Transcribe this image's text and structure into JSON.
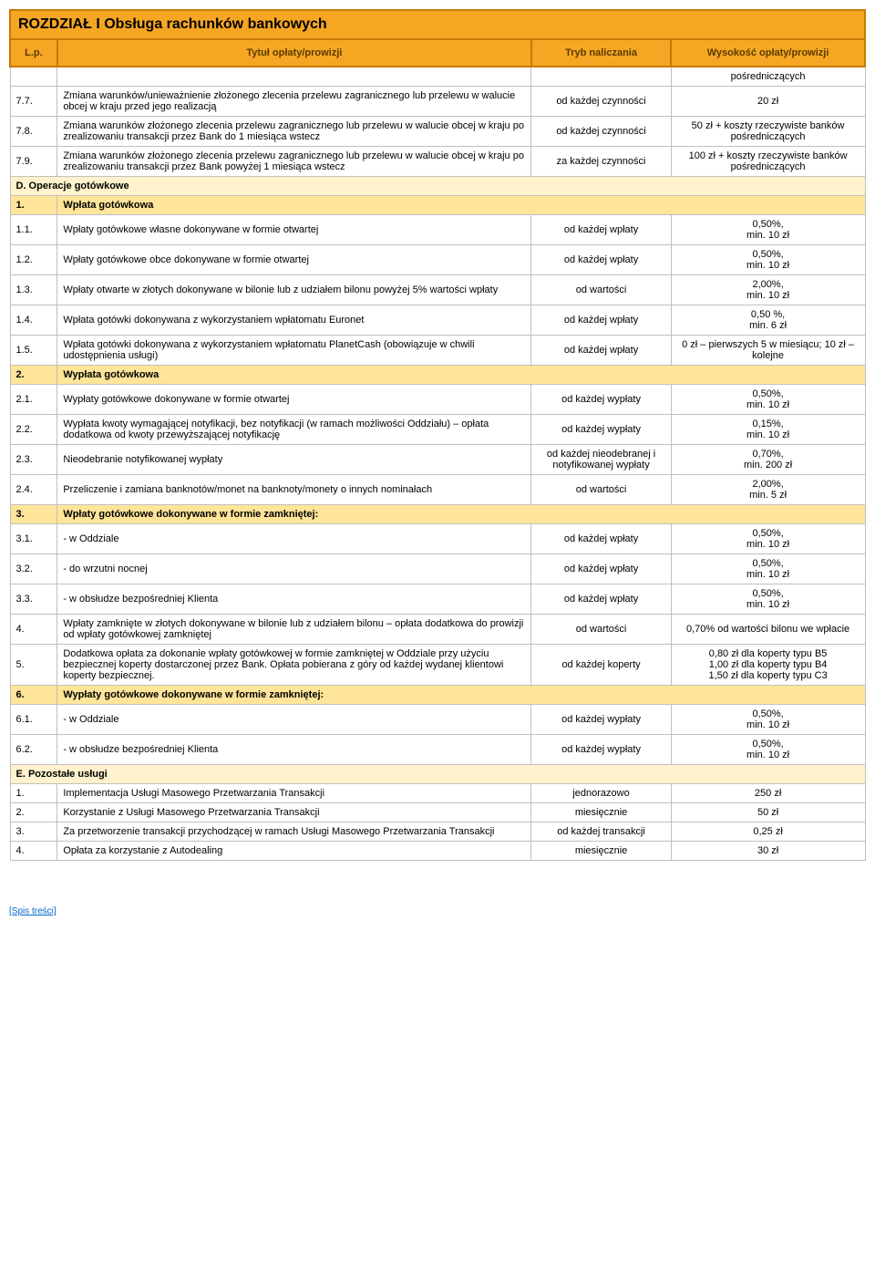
{
  "header": {
    "chapter": "ROZDZIAŁ I Obsługa rachunków bankowych",
    "col_lp": "L.p.",
    "col_title": "Tytuł opłaty/prowizji",
    "col_tryb": "Tryb naliczania",
    "col_wys": "Wysokość opłaty/prowizji"
  },
  "rows": [
    {
      "type": "data",
      "lp": "",
      "title": "",
      "tryb": "",
      "wys": "pośredniczących"
    },
    {
      "type": "data",
      "lp": "7.7.",
      "title": "Zmiana warunków/unieważnienie złożonego zlecenia przelewu zagranicznego lub przelewu w walucie obcej w kraju przed jego realizacją",
      "tryb": "od każdej czynności",
      "wys": "20 zł"
    },
    {
      "type": "data",
      "lp": "7.8.",
      "title": "Zmiana warunków złożonego zlecenia przelewu zagranicznego lub przelewu w walucie obcej w kraju po zrealizowaniu transakcji przez Bank do 1 miesiąca wstecz",
      "tryb": "od każdej czynności",
      "wys": "50 zł + koszty rzeczywiste banków pośredniczących"
    },
    {
      "type": "data",
      "lp": "7.9.",
      "title": "Zmiana warunków złożonego zlecenia przelewu zagranicznego lub przelewu w walucie obcej w kraju po zrealizowaniu transakcji przez Bank powyżej 1 miesiąca wstecz",
      "tryb": "za każdej czynności",
      "wys": "100 zł + koszty rzeczywiste banków pośredniczących"
    },
    {
      "type": "section",
      "label": "D. Operacje gotówkowe"
    },
    {
      "type": "subsection",
      "lp": "1.",
      "label": "Wpłata gotówkowa"
    },
    {
      "type": "data",
      "lp": "1.1.",
      "title": "Wpłaty gotówkowe własne dokonywane w formie otwartej",
      "tryb": "od każdej wpłaty",
      "wys": "0,50%,\nmin. 10 zł"
    },
    {
      "type": "data",
      "lp": "1.2.",
      "title": "Wpłaty gotówkowe obce dokonywane w formie otwartej",
      "tryb": "od każdej wpłaty",
      "wys": "0,50%,\nmin. 10 zł"
    },
    {
      "type": "data",
      "lp": "1.3.",
      "title": "Wpłaty otwarte w złotych dokonywane w bilonie lub z udziałem bilonu powyżej 5% wartości wpłaty",
      "tryb": "od wartości",
      "wys": "2,00%,\nmin. 10 zł"
    },
    {
      "type": "data",
      "lp": "1.4.",
      "title": "Wpłata gotówki dokonywana z wykorzystaniem wpłatomatu Euronet",
      "tryb": "od każdej wpłaty",
      "wys": "0,50 %,\nmin. 6 zł"
    },
    {
      "type": "data",
      "lp": "1.5.",
      "title": "Wpłata gotówki dokonywana z wykorzystaniem wpłatomatu PlanetCash (obowiązuje w chwili udostępnienia usługi)",
      "tryb": "od każdej wpłaty",
      "wys": "0 zł – pierwszych 5 w miesiącu; 10 zł – kolejne"
    },
    {
      "type": "subsection",
      "lp": "2.",
      "label": "Wypłata gotówkowa"
    },
    {
      "type": "data",
      "lp": "2.1.",
      "title": "Wypłaty gotówkowe dokonywane w formie otwartej",
      "tryb": "od każdej wypłaty",
      "wys": "0,50%,\nmin. 10 zł"
    },
    {
      "type": "data",
      "lp": "2.2.",
      "title": "Wypłata kwoty wymagającej notyfikacji, bez notyfikacji (w ramach możliwości Oddziału) – opłata dodatkowa od kwoty przewyższającej notyfikację",
      "tryb": "od każdej wypłaty",
      "wys": "0,15%,\nmin. 10 zł"
    },
    {
      "type": "data",
      "lp": "2.3.",
      "title": "Nieodebranie notyfikowanej wypłaty",
      "tryb": "od każdej nieodebranej i notyfikowanej wypłaty",
      "wys": "0,70%,\nmin. 200 zł"
    },
    {
      "type": "data",
      "lp": "2.4.",
      "title": "Przeliczenie i zamiana banknotów/monet na banknoty/monety o innych nominałach",
      "tryb": "od wartości",
      "wys": "2,00%,\nmin. 5 zł"
    },
    {
      "type": "subsection",
      "lp": "3.",
      "label": "Wpłaty gotówkowe dokonywane w formie zamkniętej:"
    },
    {
      "type": "data",
      "lp": "3.1.",
      "title": "- w Oddziale",
      "tryb": "od każdej wpłaty",
      "wys": "0,50%,\nmin. 10 zł"
    },
    {
      "type": "data",
      "lp": "3.2.",
      "title": "- do wrzutni nocnej",
      "tryb": "od każdej wpłaty",
      "wys": "0,50%,\nmin. 10 zł"
    },
    {
      "type": "data",
      "lp": "3.3.",
      "title": "- w obsłudze bezpośredniej Klienta",
      "tryb": "od każdej wpłaty",
      "wys": "0,50%,\nmin. 10 zł"
    },
    {
      "type": "data",
      "lp": "4.",
      "title": "Wpłaty zamknięte w złotych dokonywane w bilonie lub z udziałem bilonu – opłata dodatkowa do prowizji od wpłaty gotówkowej zamkniętej",
      "tryb": "od wartości",
      "wys": "0,70% od wartości bilonu we wpłacie"
    },
    {
      "type": "data",
      "lp": "5.",
      "title": "Dodatkowa opłata za dokonanie wpłaty gotówkowej w formie zamkniętej w Oddziale przy użyciu bezpiecznej koperty dostarczonej przez Bank. Opłata pobierana z góry od każdej wydanej klientowi koperty bezpiecznej.",
      "tryb": "od każdej koperty",
      "wys": "0,80 zł dla koperty typu B5\n1,00 zł dla koperty typu B4\n1,50 zł dla koperty typu C3"
    },
    {
      "type": "subsection",
      "lp": "6.",
      "label": "Wypłaty gotówkowe dokonywane w formie zamkniętej:"
    },
    {
      "type": "data",
      "lp": "6.1.",
      "title": "- w Oddziale",
      "tryb": "od każdej wypłaty",
      "wys": "0,50%,\nmin. 10 zł"
    },
    {
      "type": "data",
      "lp": "6.2.",
      "title": "- w obsłudze bezpośredniej Klienta",
      "tryb": "od każdej wypłaty",
      "wys": "0,50%,\nmin. 10 zł"
    },
    {
      "type": "section",
      "label": "E.  Pozostałe usługi"
    },
    {
      "type": "data",
      "lp": "1.",
      "title": "Implementacja Usługi Masowego Przetwarzania Transakcji",
      "tryb": "jednorazowo",
      "wys": "250 zł"
    },
    {
      "type": "data",
      "lp": "2.",
      "title": "Korzystanie z Usługi Masowego Przetwarzania Transakcji",
      "tryb": "miesięcznie",
      "wys": "50 zł"
    },
    {
      "type": "data",
      "lp": "3.",
      "title": "Za przetworzenie transakcji przychodzącej w ramach Usługi Masowego Przetwarzania Transakcji",
      "tryb": "od każdej transakcji",
      "wys": "0,25 zł"
    },
    {
      "type": "data",
      "lp": "4.",
      "title": "Opłata za korzystanie z Autodealing",
      "tryb": "miesięcznie",
      "wys": "30 zł"
    }
  ],
  "footer_link": "[Spis treści]"
}
